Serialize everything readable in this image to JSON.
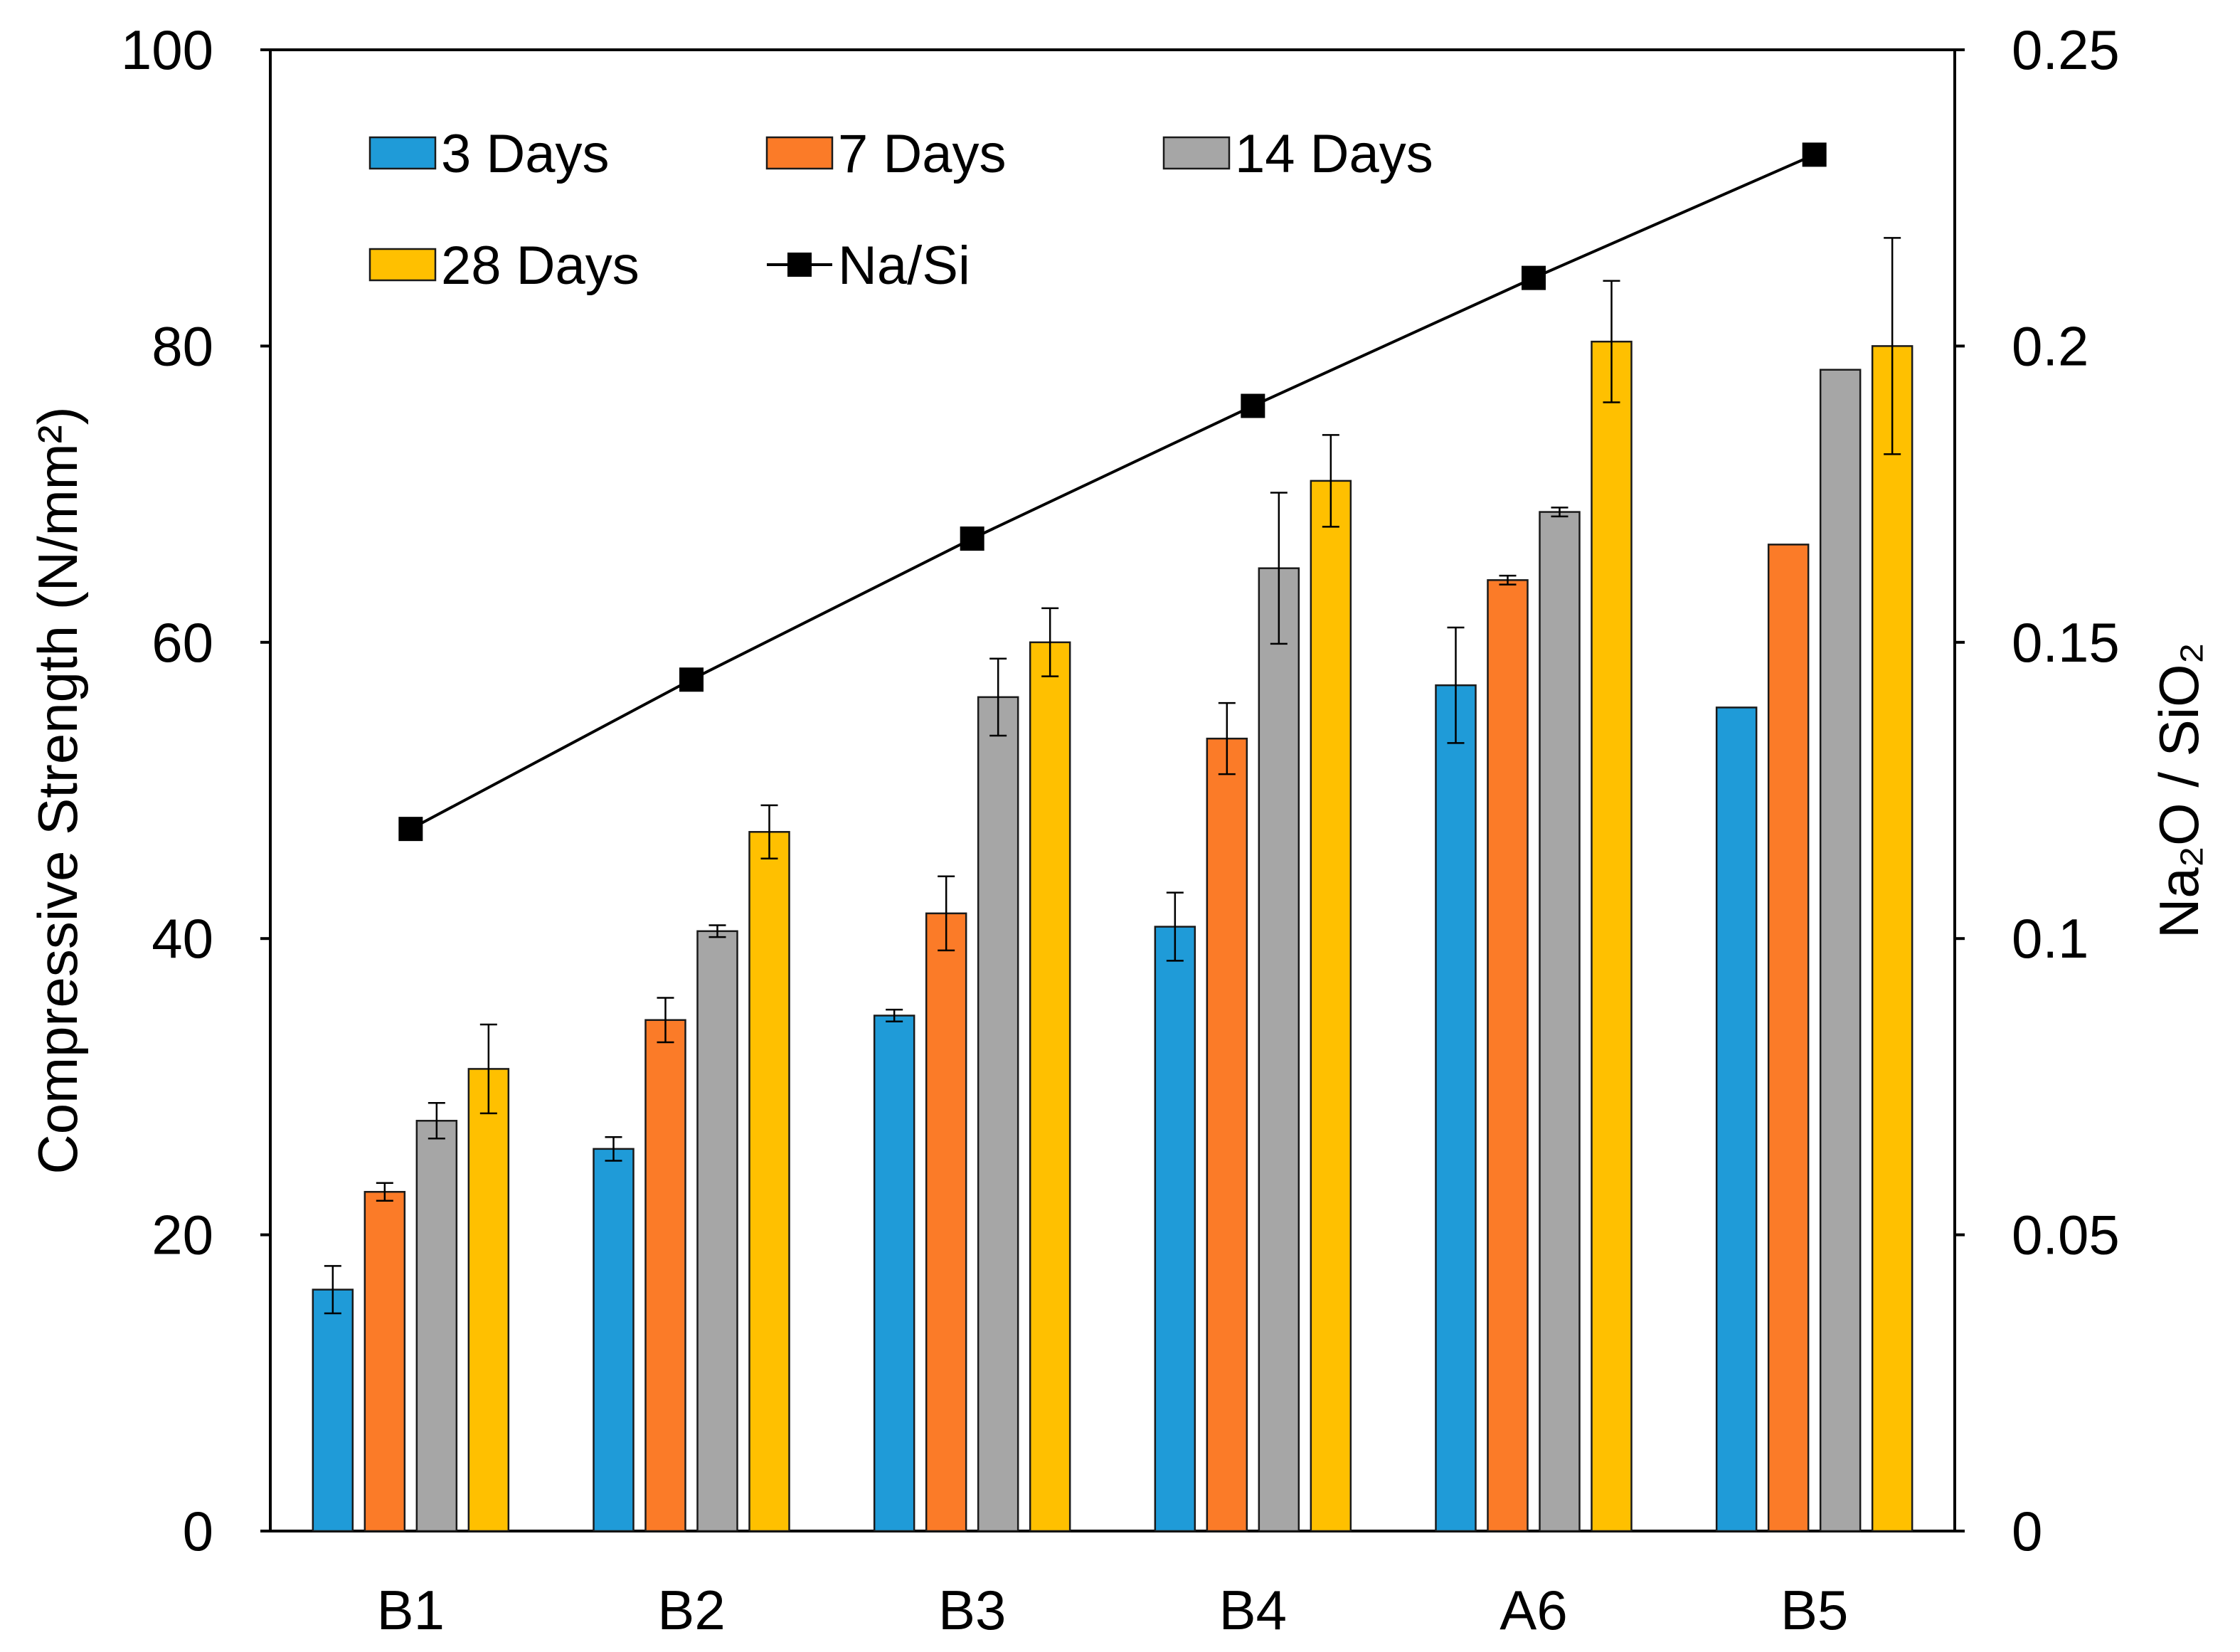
{
  "chart_data": {
    "type": "bar",
    "title": "",
    "categories": [
      "B1",
      "B2",
      "B3",
      "B4",
      "A6",
      "B5"
    ],
    "series": [
      {
        "name": "3 Days",
        "color": "#1F9BD8",
        "values": [
          16.3,
          25.8,
          34.8,
          40.8,
          57.1,
          55.6
        ],
        "errors": [
          1.6,
          0.8,
          0.4,
          2.3,
          3.9,
          0
        ]
      },
      {
        "name": "7 Days",
        "color": "#FB7B28",
        "values": [
          22.9,
          34.5,
          41.7,
          53.5,
          64.2,
          66.6
        ],
        "errors": [
          0.6,
          1.5,
          2.5,
          2.4,
          0.3,
          0
        ]
      },
      {
        "name": "14 Days",
        "color": "#A6A6A6",
        "values": [
          27.7,
          40.5,
          56.3,
          65.0,
          68.8,
          78.4
        ],
        "errors": [
          1.2,
          0.4,
          2.6,
          5.1,
          0.3,
          0
        ]
      },
      {
        "name": "28 Days",
        "color": "#FFC000",
        "values": [
          31.2,
          47.2,
          60.0,
          70.9,
          80.3,
          80.0
        ],
        "errors": [
          3.0,
          1.8,
          2.3,
          3.1,
          4.1,
          7.3
        ]
      }
    ],
    "line_series": {
      "name": "Na/Si",
      "color": "#000000",
      "axis": "right",
      "values": [
        0.1185,
        0.1437,
        0.1675,
        0.1899,
        0.2115,
        0.2323
      ]
    },
    "xlabel": "",
    "ylabel": "Compressive Strength (N/mm²)",
    "y2label": "Na₂O / SiO₂",
    "ylim": [
      0,
      100
    ],
    "y2lim": [
      0,
      0.25
    ],
    "yticks": [
      0,
      20,
      40,
      60,
      80,
      100
    ],
    "yticks_labels": [
      "0",
      "20",
      "40",
      "60",
      "80",
      "100"
    ],
    "y2ticks": [
      0,
      0.05,
      0.1,
      0.15,
      0.2,
      0.25
    ],
    "y2ticks_labels": [
      "0",
      "0.05",
      "0.1",
      "0.15",
      "0.2",
      "0.25"
    ],
    "legend_position": "top-left",
    "grid": false
  }
}
